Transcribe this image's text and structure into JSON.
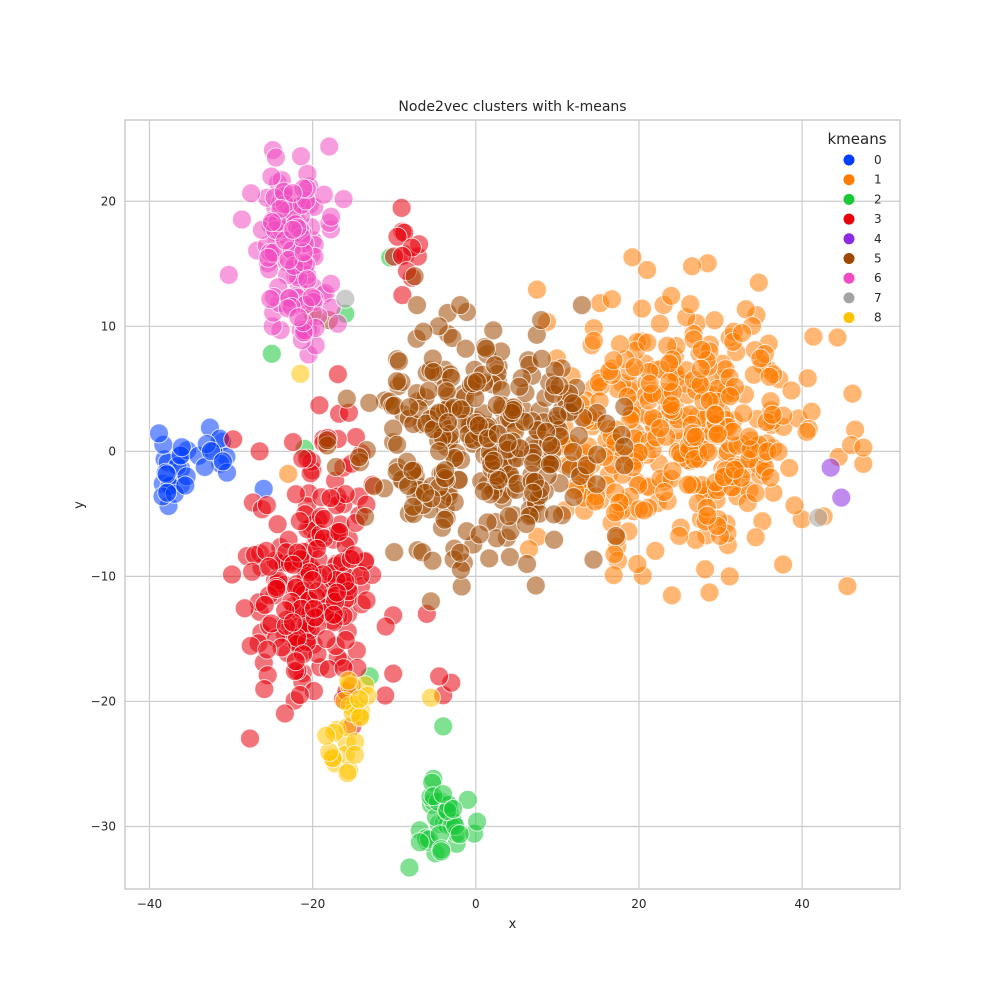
{
  "chart_data": {
    "type": "scatter",
    "title": "Node2vec clusters with k-means",
    "xlabel": "x",
    "ylabel": "y",
    "xlim": [
      -43,
      52
    ],
    "ylim": [
      -35,
      26.5
    ],
    "xticks": [
      -40,
      -20,
      0,
      20,
      40
    ],
    "yticks": [
      -30,
      -20,
      -10,
      0,
      10,
      20
    ],
    "grid": true,
    "legend": {
      "title": "kmeans",
      "placement": "top-right",
      "entries": [
        "0",
        "1",
        "2",
        "3",
        "4",
        "5",
        "6",
        "7",
        "8"
      ]
    },
    "series": [
      {
        "name": "0",
        "color": "#023eff",
        "clusters": [
          {
            "cx": -37,
            "cy": -1.5,
            "sx": 1.2,
            "sy": 1.3,
            "n": 22,
            "seed": 11
          },
          {
            "cx": -32.5,
            "cy": 0,
            "sx": 1.0,
            "sy": 0.8,
            "n": 10,
            "seed": 12
          }
        ],
        "points": [
          [
            -26,
            -3
          ],
          [
            -30.5,
            -1.7
          ],
          [
            -31,
            -0.8
          ]
        ]
      },
      {
        "name": "1",
        "color": "#ff7c00",
        "clusters": [
          {
            "cx": 27,
            "cy": 2,
            "sx": 7.5,
            "sy": 5.2,
            "n": 330,
            "seed": 21
          },
          {
            "cx": 14,
            "cy": 0.5,
            "sx": 3.5,
            "sy": 4,
            "n": 60,
            "seed": 22
          }
        ],
        "points": [
          [
            21,
            14.5
          ],
          [
            26.5,
            14.8
          ],
          [
            47.5,
            -1
          ],
          [
            46,
            0.5
          ],
          [
            47.5,
            0.3
          ],
          [
            -23,
            -1.8
          ]
        ]
      },
      {
        "name": "2",
        "color": "#1ac938",
        "clusters": [
          {
            "cx": -4,
            "cy": -29.5,
            "sx": 1.6,
            "sy": 1.6,
            "n": 40,
            "seed": 31
          }
        ],
        "points": [
          [
            -25,
            7.8
          ],
          [
            -21,
            0.2
          ],
          [
            -10.5,
            15.5
          ],
          [
            -16,
            11
          ],
          [
            -4,
            -22
          ],
          [
            -13,
            -18
          ]
        ]
      },
      {
        "name": "3",
        "color": "#e8000b",
        "clusters": [
          {
            "cx": -20,
            "cy": -11,
            "sx": 3.8,
            "sy": 4.6,
            "n": 210,
            "seed": 41
          },
          {
            "cx": -18,
            "cy": 0,
            "sx": 2.2,
            "sy": 3,
            "n": 25,
            "seed": 42
          },
          {
            "cx": -9,
            "cy": 16,
            "sx": 1.2,
            "sy": 1.5,
            "n": 12,
            "seed": 43
          }
        ],
        "points": [
          [
            -4,
            -19.5
          ],
          [
            -3,
            -18.5
          ],
          [
            -4.5,
            -18
          ],
          [
            -6,
            -13
          ],
          [
            -9,
            12.5
          ],
          [
            -26.5,
            0
          ]
        ]
      },
      {
        "name": "4",
        "color": "#8b2be2",
        "clusters": [],
        "points": [
          [
            43.5,
            -1.3
          ],
          [
            44.8,
            -3.7
          ]
        ]
      },
      {
        "name": "5",
        "color": "#9f4800",
        "clusters": [
          {
            "cx": 0,
            "cy": 0,
            "sx": 7,
            "sy": 4.5,
            "n": 330,
            "seed": 51
          }
        ],
        "points": [
          [
            -18,
            10.5
          ],
          [
            -20,
            11
          ],
          [
            -7.5,
            14
          ],
          [
            8,
            10.5
          ],
          [
            -5.5,
            -12
          ]
        ]
      },
      {
        "name": "6",
        "color": "#f14cc1",
        "clusters": [
          {
            "cx": -23,
            "cy": 17.5,
            "sx": 2.8,
            "sy": 3,
            "n": 120,
            "seed": 61
          },
          {
            "cx": -21,
            "cy": 11,
            "sx": 2,
            "sy": 2,
            "n": 25,
            "seed": 62
          }
        ],
        "points": [
          [
            -24.5,
            23.5
          ]
        ]
      },
      {
        "name": "7",
        "color": "#a3a3a3",
        "clusters": [],
        "points": [
          [
            42,
            -5.3
          ],
          [
            -16,
            12.2
          ]
        ]
      },
      {
        "name": "8",
        "color": "#ffc400",
        "clusters": [
          {
            "cx": -17,
            "cy": -23.5,
            "sx": 1.1,
            "sy": 1.1,
            "n": 14,
            "seed": 81
          },
          {
            "cx": -14.5,
            "cy": -20,
            "sx": 1.2,
            "sy": 1.1,
            "n": 12,
            "seed": 82
          }
        ],
        "points": [
          [
            -21.5,
            6.2
          ],
          [
            -5.5,
            -19.7
          ]
        ]
      }
    ]
  }
}
